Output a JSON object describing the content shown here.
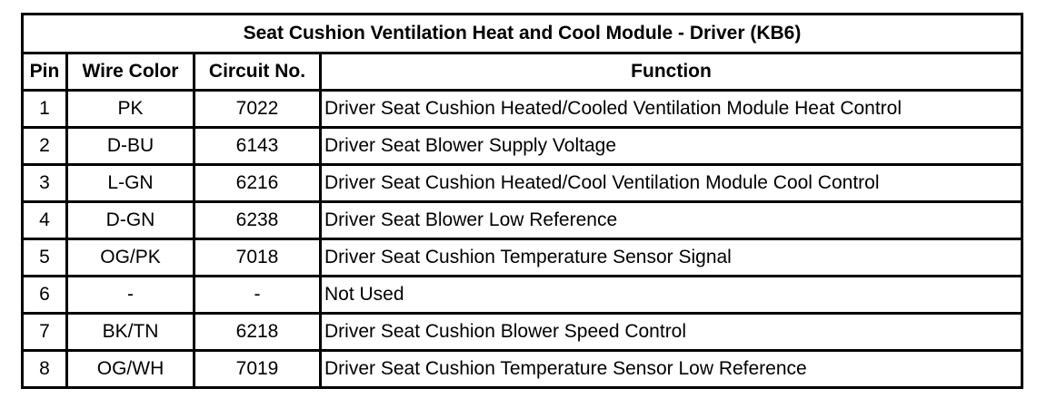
{
  "title": "Seat Cushion Ventilation Heat and Cool Module - Driver (KB6)",
  "headers": {
    "pin": "Pin",
    "wire": "Wire Color",
    "circuit": "Circuit No.",
    "function": "Function"
  },
  "rows": [
    {
      "pin": "1",
      "wire": "PK",
      "circuit": "7022",
      "function": "Driver Seat Cushion Heated/Cooled Ventilation Module Heat Control"
    },
    {
      "pin": "2",
      "wire": "D-BU",
      "circuit": "6143",
      "function": "Driver Seat Blower Supply Voltage"
    },
    {
      "pin": "3",
      "wire": "L-GN",
      "circuit": "6216",
      "function": "Driver Seat Cushion Heated/Cool Ventilation Module Cool Control"
    },
    {
      "pin": "4",
      "wire": "D-GN",
      "circuit": "6238",
      "function": "Driver Seat Blower Low Reference"
    },
    {
      "pin": "5",
      "wire": "OG/PK",
      "circuit": "7018",
      "function": "Driver Seat Cushion Temperature Sensor Signal"
    },
    {
      "pin": "6",
      "wire": "-",
      "circuit": "-",
      "function": "Not Used"
    },
    {
      "pin": "7",
      "wire": "BK/TN",
      "circuit": "6218",
      "function": "Driver Seat Cushion Blower Speed Control"
    },
    {
      "pin": "8",
      "wire": "OG/WH",
      "circuit": "7019",
      "function": "Driver Seat Cushion Temperature Sensor Low Reference"
    }
  ]
}
